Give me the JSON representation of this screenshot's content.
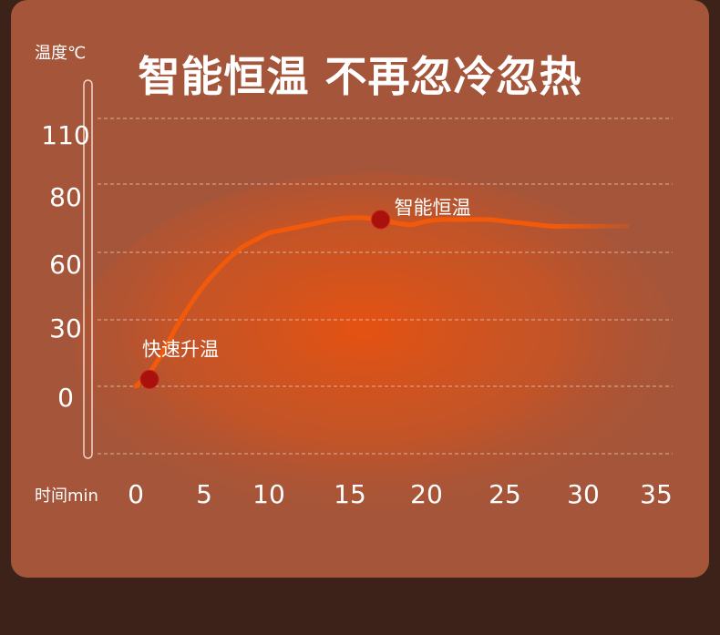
{
  "title": "智能恒温 不再忽冷忽热",
  "chart_data": {
    "type": "line",
    "ylabel": "温度℃",
    "xlabel": "时间min",
    "y_ticks": [
      "110",
      "80",
      "60",
      "30",
      "0"
    ],
    "x_ticks": [
      "0",
      "5",
      "10",
      "15",
      "20",
      "25",
      "30",
      "35"
    ],
    "series": [
      {
        "x": [
          0,
          1,
          2,
          3,
          4,
          5,
          6,
          7,
          8,
          9,
          10,
          11,
          12,
          13,
          14,
          15,
          16,
          17,
          18,
          19,
          20,
          21,
          22,
          23,
          24,
          25,
          26,
          27,
          28,
          29,
          30,
          31,
          32,
          33
        ],
        "y": [
          0,
          6,
          15,
          26,
          36,
          45,
          52,
          58,
          62,
          64,
          66,
          67,
          68,
          69,
          70,
          70.5,
          70.5,
          70,
          69,
          68.5,
          69.5,
          70,
          70,
          70,
          70,
          69.5,
          69,
          68.5,
          68,
          68,
          68,
          68,
          68,
          68
        ]
      }
    ],
    "annotations": [
      {
        "x": 1,
        "y": 3,
        "label": "快速升温"
      },
      {
        "x": 17,
        "y": 70,
        "label": "智能恒温"
      }
    ],
    "grid": true,
    "colors": {
      "line": "#f25a0a",
      "marker": "#a8110c",
      "gridline": "#e8bfae"
    }
  }
}
